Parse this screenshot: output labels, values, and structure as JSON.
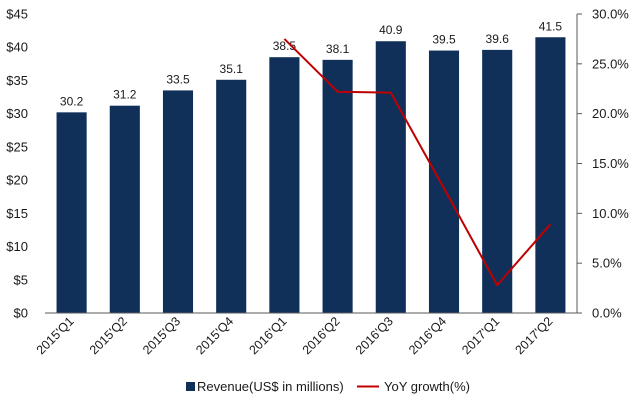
{
  "chart_data": {
    "type": "bar",
    "categories": [
      "2015'Q1",
      "2015'Q2",
      "2015'Q3",
      "2015'Q4",
      "2016'Q1",
      "2016'Q2",
      "2016'Q3",
      "2016'Q4",
      "2017'Q1",
      "2017'Q2"
    ],
    "series": [
      {
        "name": "Revenue(US$ in millions)",
        "type": "bar",
        "axis": "left",
        "color": "#10305a",
        "values": [
          30.2,
          31.2,
          33.5,
          35.1,
          38.5,
          38.1,
          40.9,
          39.5,
          39.6,
          41.5
        ],
        "data_labels": [
          "30.2",
          "31.2",
          "33.5",
          "35.1",
          "38.5",
          "38.1",
          "40.9",
          "39.5",
          "39.6",
          "41.5"
        ]
      },
      {
        "name": "YoY growth(%)",
        "type": "line",
        "axis": "right",
        "color": "#c00000",
        "values": [
          null,
          null,
          null,
          null,
          27.5,
          22.2,
          22.1,
          12.5,
          2.8,
          8.9
        ]
      }
    ],
    "y_left": {
      "ylim": [
        0,
        45
      ],
      "ticks": [
        0,
        5,
        10,
        15,
        20,
        25,
        30,
        35,
        40,
        45
      ],
      "tick_labels": [
        "$0",
        "$5",
        "$10",
        "$15",
        "$20",
        "$25",
        "$30",
        "$35",
        "$40",
        "$45"
      ]
    },
    "y_right": {
      "ylim": [
        0,
        30
      ],
      "ticks": [
        0,
        5,
        10,
        15,
        20,
        25,
        30
      ],
      "tick_labels": [
        "0.0%",
        "5.0%",
        "10.0%",
        "15.0%",
        "20.0%",
        "25.0%",
        "30.0%"
      ]
    },
    "title": "",
    "xlabel": "",
    "grid": false,
    "legend_position": "bottom"
  }
}
